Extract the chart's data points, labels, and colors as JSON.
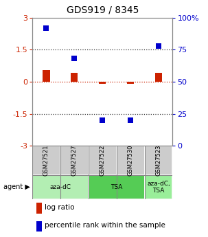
{
  "title": "GDS919 / 8345",
  "samples": [
    "GSM27521",
    "GSM27527",
    "GSM27522",
    "GSM27530",
    "GSM27523"
  ],
  "log_ratio": [
    0.55,
    0.42,
    -0.08,
    -0.1,
    0.42
  ],
  "percentile": [
    92,
    68,
    20,
    20,
    78
  ],
  "ylim": [
    -3,
    3
  ],
  "y_ticks_left": [
    -3,
    -1.5,
    0,
    1.5,
    3
  ],
  "y_ticks_right_vals": [
    0,
    25,
    50,
    75,
    100
  ],
  "red_color": "#CC2200",
  "blue_color": "#0000CC",
  "bar_width": 0.25,
  "background_color": "#ffffff",
  "gray_cell": "#cccccc",
  "agent_defs": [
    {
      "label": "aza-dC",
      "start": 0,
      "end": 2,
      "color": "#b3eeb3"
    },
    {
      "label": "TSA",
      "start": 2,
      "end": 4,
      "color": "#55cc55"
    },
    {
      "label": "aza-dC,\nTSA",
      "start": 4,
      "end": 5,
      "color": "#99ee99"
    }
  ]
}
